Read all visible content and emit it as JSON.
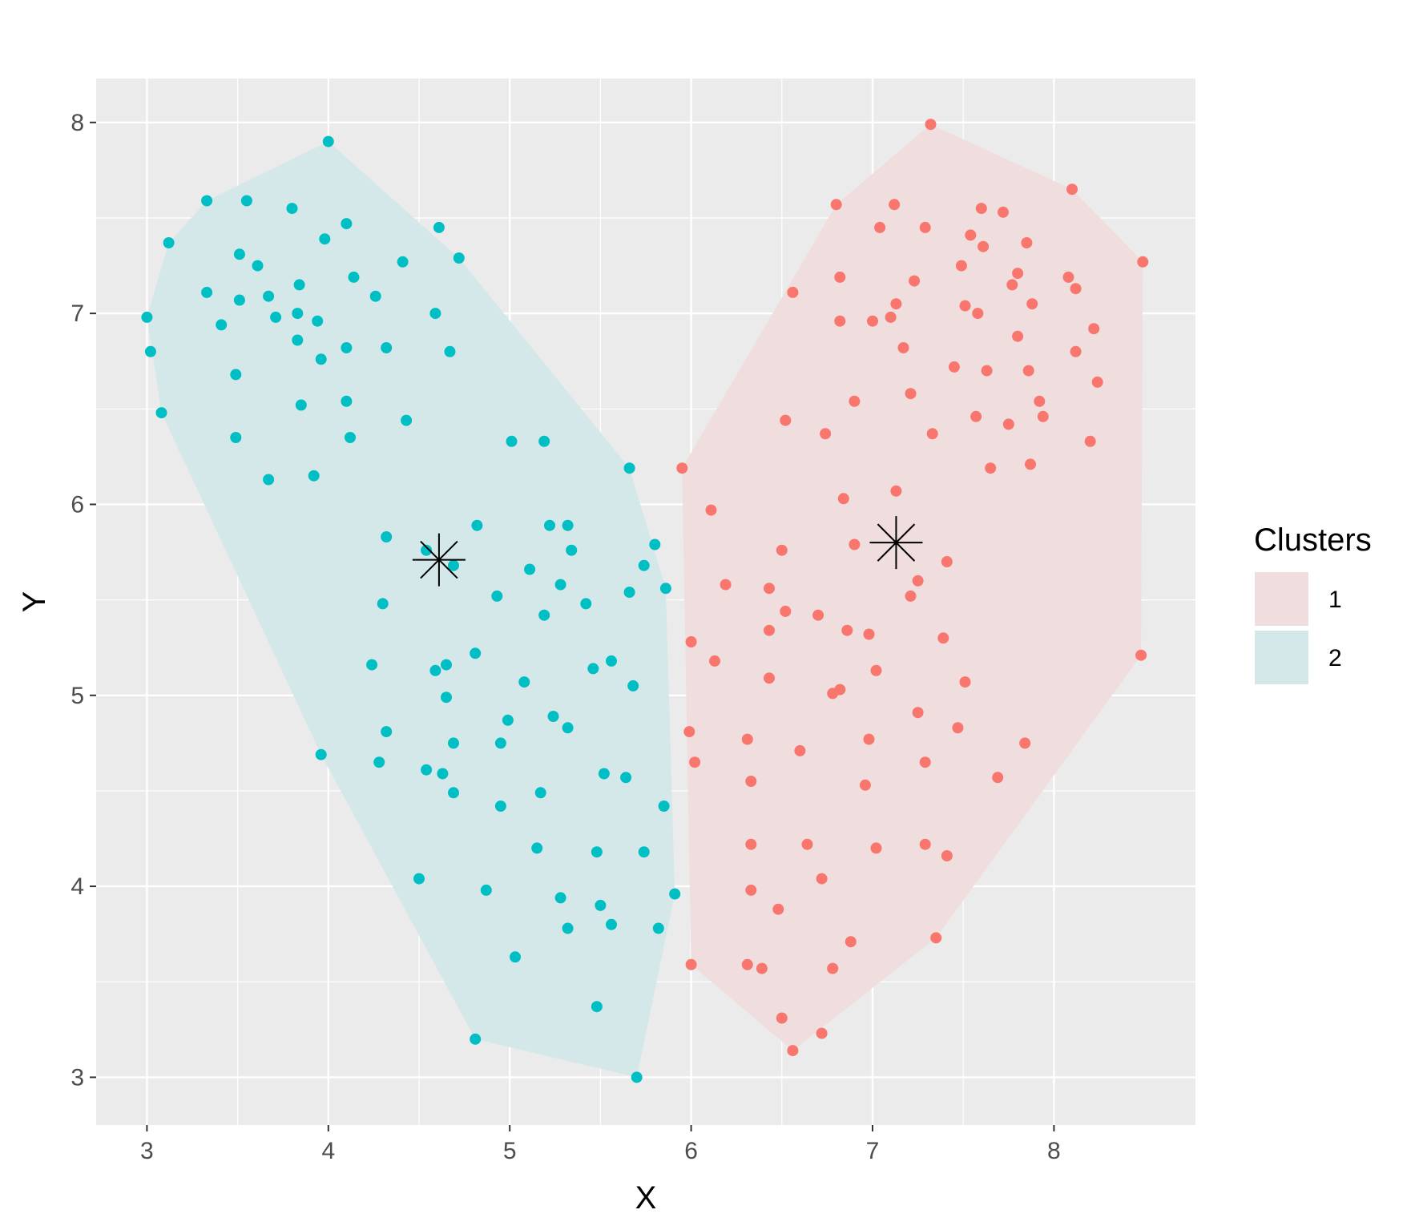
{
  "chart_data": {
    "type": "scatter",
    "title": "",
    "xlabel": "X",
    "ylabel": "Y",
    "xlim": [
      2.72,
      8.78
    ],
    "ylim": [
      2.75,
      8.23
    ],
    "xticks": [
      3,
      4,
      5,
      6,
      7,
      8
    ],
    "yticks": [
      3,
      4,
      5,
      6,
      7,
      8
    ],
    "grid": true,
    "legend": {
      "title": "Clusters",
      "position": "right"
    },
    "series": [
      {
        "name": "1",
        "color": "#F8766D",
        "hull_fill": "#EFDEDD",
        "centroid": [
          7.13,
          5.8
        ],
        "hull": [
          [
            7.32,
            7.99
          ],
          [
            8.1,
            7.65
          ],
          [
            8.49,
            7.27
          ],
          [
            8.48,
            5.21
          ],
          [
            7.35,
            3.73
          ],
          [
            6.56,
            3.14
          ],
          [
            6.0,
            3.59
          ],
          [
            5.95,
            6.19
          ],
          [
            6.8,
            7.57
          ]
        ],
        "points": [
          [
            7.32,
            7.99
          ],
          [
            6.8,
            7.57
          ],
          [
            7.12,
            7.57
          ],
          [
            8.1,
            7.65
          ],
          [
            7.6,
            7.55
          ],
          [
            7.72,
            7.53
          ],
          [
            7.04,
            7.45
          ],
          [
            7.29,
            7.45
          ],
          [
            7.54,
            7.41
          ],
          [
            7.61,
            7.35
          ],
          [
            7.85,
            7.37
          ],
          [
            7.49,
            7.25
          ],
          [
            8.49,
            7.27
          ],
          [
            6.82,
            7.19
          ],
          [
            7.23,
            7.17
          ],
          [
            7.8,
            7.21
          ],
          [
            8.08,
            7.19
          ],
          [
            6.56,
            7.11
          ],
          [
            7.77,
            7.15
          ],
          [
            8.12,
            7.13
          ],
          [
            7.13,
            7.05
          ],
          [
            7.51,
            7.04
          ],
          [
            7.88,
            7.05
          ],
          [
            6.82,
            6.96
          ],
          [
            7.0,
            6.96
          ],
          [
            7.1,
            6.98
          ],
          [
            7.58,
            7.0
          ],
          [
            8.22,
            6.92
          ],
          [
            7.8,
            6.88
          ],
          [
            7.17,
            6.82
          ],
          [
            8.12,
            6.8
          ],
          [
            7.45,
            6.72
          ],
          [
            7.63,
            6.7
          ],
          [
            7.86,
            6.7
          ],
          [
            8.24,
            6.64
          ],
          [
            7.21,
            6.58
          ],
          [
            6.9,
            6.54
          ],
          [
            7.92,
            6.54
          ],
          [
            7.57,
            6.46
          ],
          [
            7.94,
            6.46
          ],
          [
            6.52,
            6.44
          ],
          [
            7.75,
            6.42
          ],
          [
            6.74,
            6.37
          ],
          [
            7.33,
            6.37
          ],
          [
            8.2,
            6.33
          ],
          [
            7.87,
            6.21
          ],
          [
            7.65,
            6.19
          ],
          [
            5.95,
            6.19
          ],
          [
            7.13,
            6.07
          ],
          [
            6.84,
            6.03
          ],
          [
            6.11,
            5.97
          ],
          [
            6.9,
            5.79
          ],
          [
            6.5,
            5.76
          ],
          [
            7.41,
            5.7
          ],
          [
            7.25,
            5.6
          ],
          [
            6.19,
            5.58
          ],
          [
            6.43,
            5.56
          ],
          [
            7.21,
            5.52
          ],
          [
            6.52,
            5.44
          ],
          [
            6.7,
            5.42
          ],
          [
            6.43,
            5.34
          ],
          [
            6.86,
            5.34
          ],
          [
            6.98,
            5.32
          ],
          [
            7.39,
            5.3
          ],
          [
            6.0,
            5.28
          ],
          [
            8.48,
            5.21
          ],
          [
            6.13,
            5.18
          ],
          [
            7.02,
            5.13
          ],
          [
            6.43,
            5.09
          ],
          [
            7.51,
            5.07
          ],
          [
            6.82,
            5.03
          ],
          [
            6.78,
            5.01
          ],
          [
            7.25,
            4.91
          ],
          [
            7.47,
            4.83
          ],
          [
            5.99,
            4.81
          ],
          [
            6.31,
            4.77
          ],
          [
            6.98,
            4.77
          ],
          [
            7.84,
            4.75
          ],
          [
            6.6,
            4.71
          ],
          [
            6.02,
            4.65
          ],
          [
            7.29,
            4.65
          ],
          [
            7.69,
            4.57
          ],
          [
            6.33,
            4.55
          ],
          [
            6.96,
            4.53
          ],
          [
            6.33,
            4.22
          ],
          [
            6.64,
            4.22
          ],
          [
            7.29,
            4.22
          ],
          [
            7.02,
            4.2
          ],
          [
            7.41,
            4.16
          ],
          [
            6.72,
            4.04
          ],
          [
            6.33,
            3.98
          ],
          [
            6.48,
            3.88
          ],
          [
            7.35,
            3.73
          ],
          [
            6.88,
            3.71
          ],
          [
            6.0,
            3.59
          ],
          [
            6.31,
            3.59
          ],
          [
            6.39,
            3.57
          ],
          [
            6.78,
            3.57
          ],
          [
            6.5,
            3.31
          ],
          [
            6.72,
            3.23
          ],
          [
            6.56,
            3.14
          ]
        ]
      },
      {
        "name": "2",
        "color": "#00BFC4",
        "hull_fill": "#D4E8E9",
        "centroid": [
          4.61,
          5.71
        ],
        "hull": [
          [
            4.0,
            7.9
          ],
          [
            4.72,
            7.29
          ],
          [
            5.66,
            6.19
          ],
          [
            5.86,
            5.56
          ],
          [
            5.91,
            3.96
          ],
          [
            5.7,
            3.0
          ],
          [
            4.81,
            3.2
          ],
          [
            3.96,
            4.69
          ],
          [
            3.08,
            6.48
          ],
          [
            3.0,
            6.98
          ],
          [
            3.12,
            7.37
          ],
          [
            3.33,
            7.59
          ]
        ],
        "points": [
          [
            4.0,
            7.9
          ],
          [
            3.33,
            7.59
          ],
          [
            3.55,
            7.59
          ],
          [
            3.8,
            7.55
          ],
          [
            4.1,
            7.47
          ],
          [
            4.61,
            7.45
          ],
          [
            3.98,
            7.39
          ],
          [
            3.12,
            7.37
          ],
          [
            3.51,
            7.31
          ],
          [
            4.72,
            7.29
          ],
          [
            4.41,
            7.27
          ],
          [
            3.61,
            7.25
          ],
          [
            4.14,
            7.19
          ],
          [
            3.84,
            7.15
          ],
          [
            3.33,
            7.11
          ],
          [
            3.67,
            7.09
          ],
          [
            4.26,
            7.09
          ],
          [
            3.51,
            7.07
          ],
          [
            3.0,
            6.98
          ],
          [
            3.71,
            6.98
          ],
          [
            3.83,
            7.0
          ],
          [
            4.59,
            7.0
          ],
          [
            3.94,
            6.96
          ],
          [
            3.41,
            6.94
          ],
          [
            3.83,
            6.86
          ],
          [
            3.02,
            6.8
          ],
          [
            4.1,
            6.82
          ],
          [
            4.32,
            6.82
          ],
          [
            4.67,
            6.8
          ],
          [
            3.96,
            6.76
          ],
          [
            3.49,
            6.68
          ],
          [
            4.1,
            6.54
          ],
          [
            3.85,
            6.52
          ],
          [
            3.08,
            6.48
          ],
          [
            4.43,
            6.44
          ],
          [
            3.49,
            6.35
          ],
          [
            4.12,
            6.35
          ],
          [
            5.01,
            6.33
          ],
          [
            5.19,
            6.33
          ],
          [
            5.66,
            6.19
          ],
          [
            3.92,
            6.15
          ],
          [
            3.67,
            6.13
          ],
          [
            4.82,
            5.89
          ],
          [
            5.22,
            5.89
          ],
          [
            5.32,
            5.89
          ],
          [
            4.32,
            5.83
          ],
          [
            5.8,
            5.79
          ],
          [
            5.34,
            5.76
          ],
          [
            4.54,
            5.76
          ],
          [
            5.74,
            5.68
          ],
          [
            4.69,
            5.68
          ],
          [
            5.11,
            5.66
          ],
          [
            5.28,
            5.58
          ],
          [
            5.86,
            5.56
          ],
          [
            5.66,
            5.54
          ],
          [
            4.93,
            5.52
          ],
          [
            4.3,
            5.48
          ],
          [
            5.42,
            5.48
          ],
          [
            5.19,
            5.42
          ],
          [
            4.81,
            5.22
          ],
          [
            5.56,
            5.18
          ],
          [
            4.24,
            5.16
          ],
          [
            4.65,
            5.16
          ],
          [
            5.46,
            5.14
          ],
          [
            4.59,
            5.13
          ],
          [
            5.08,
            5.07
          ],
          [
            5.68,
            5.05
          ],
          [
            4.65,
            4.99
          ],
          [
            5.24,
            4.89
          ],
          [
            4.99,
            4.87
          ],
          [
            5.32,
            4.83
          ],
          [
            4.32,
            4.81
          ],
          [
            4.95,
            4.75
          ],
          [
            4.69,
            4.75
          ],
          [
            3.96,
            4.69
          ],
          [
            4.28,
            4.65
          ],
          [
            4.54,
            4.61
          ],
          [
            4.63,
            4.59
          ],
          [
            5.52,
            4.59
          ],
          [
            5.64,
            4.57
          ],
          [
            5.17,
            4.49
          ],
          [
            4.69,
            4.49
          ],
          [
            4.95,
            4.42
          ],
          [
            5.85,
            4.42
          ],
          [
            5.15,
            4.2
          ],
          [
            5.48,
            4.18
          ],
          [
            5.74,
            4.18
          ],
          [
            4.5,
            4.04
          ],
          [
            4.87,
            3.98
          ],
          [
            5.91,
            3.96
          ],
          [
            5.28,
            3.94
          ],
          [
            5.5,
            3.9
          ],
          [
            5.56,
            3.8
          ],
          [
            5.32,
            3.78
          ],
          [
            5.82,
            3.78
          ],
          [
            5.03,
            3.63
          ],
          [
            5.48,
            3.37
          ],
          [
            4.81,
            3.2
          ],
          [
            5.7,
            3.0
          ]
        ]
      }
    ]
  }
}
